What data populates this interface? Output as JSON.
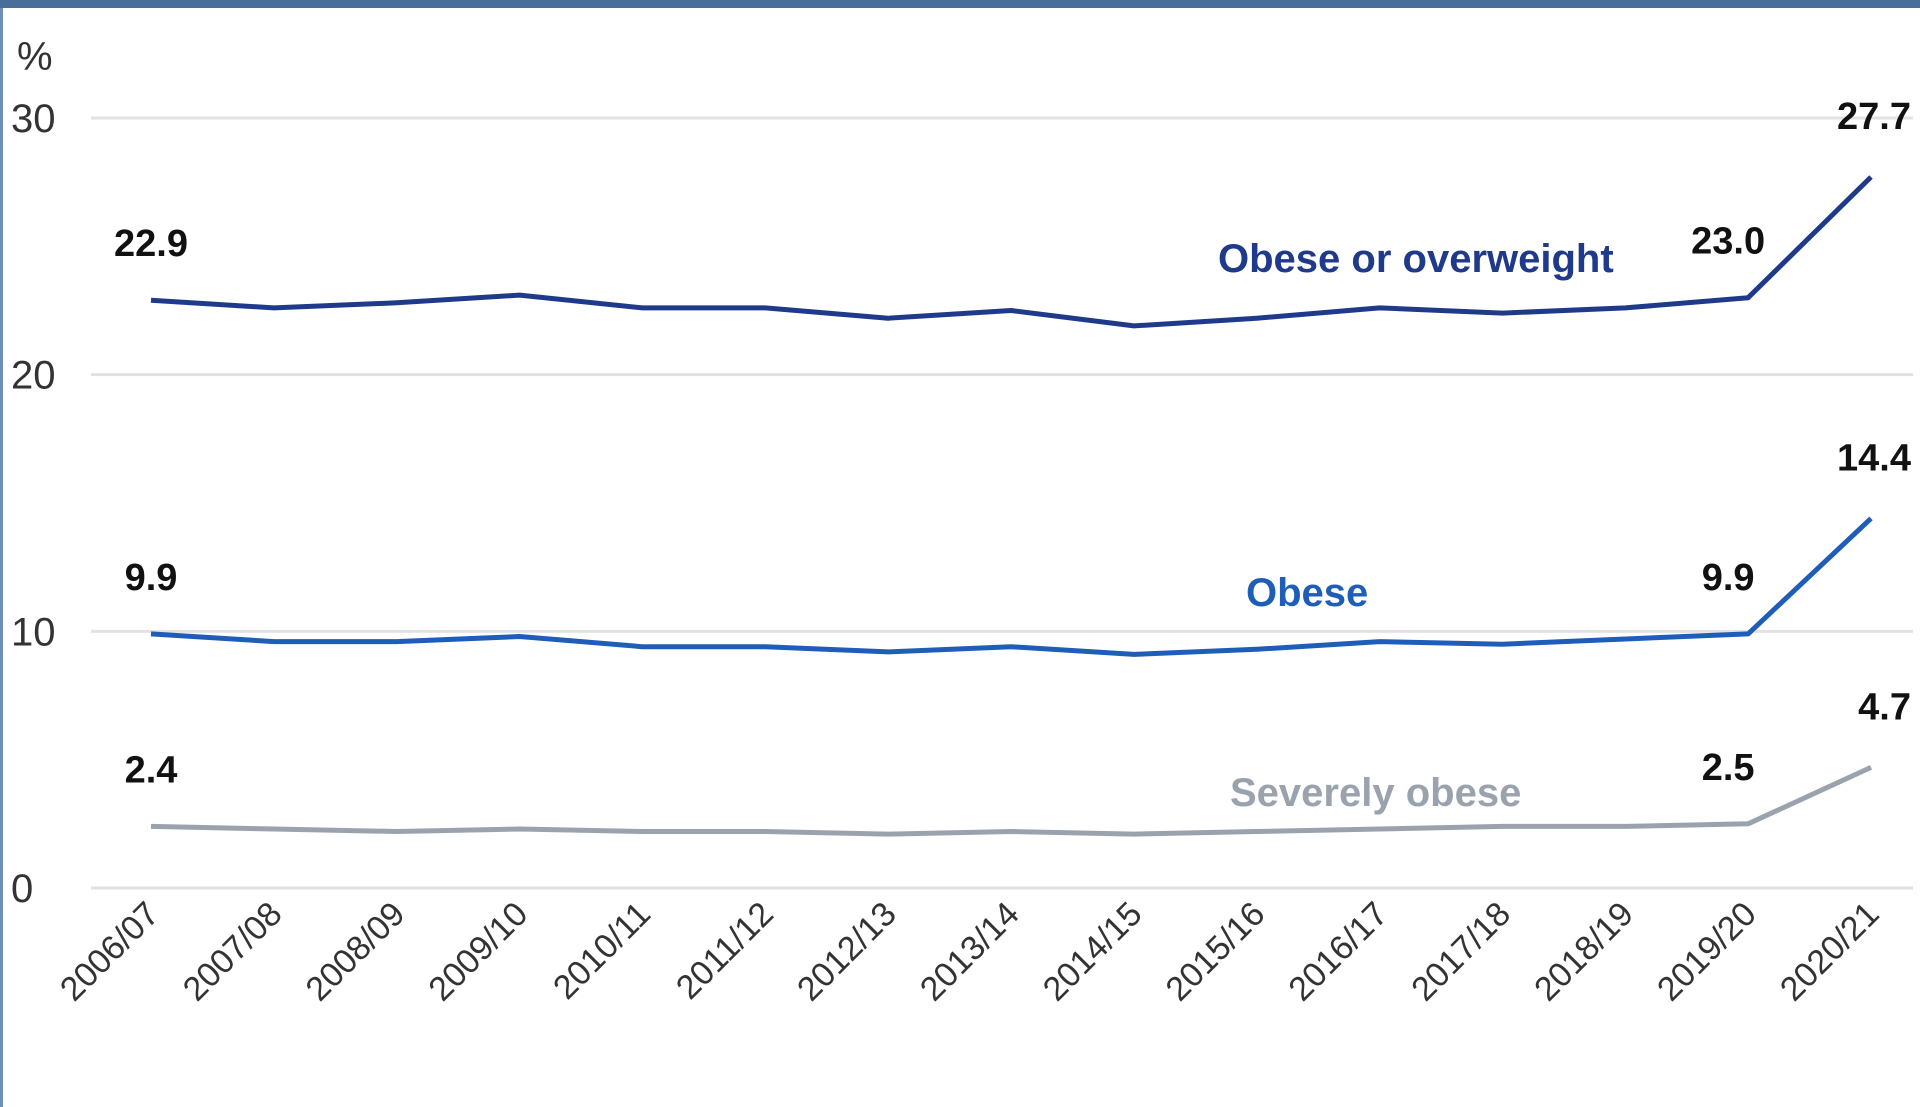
{
  "chart_data": {
    "type": "line",
    "unit_label": "%",
    "categories": [
      "2006/07",
      "2007/08",
      "2008/09",
      "2009/10",
      "2010/11",
      "2011/12",
      "2012/13",
      "2013/14",
      "2014/15",
      "2015/16",
      "2016/17",
      "2017/18",
      "2018/19",
      "2019/20",
      "2020/21"
    ],
    "ylim": [
      0,
      30
    ],
    "yticks": [
      "0",
      "10",
      "20",
      "30"
    ],
    "grid": true,
    "series": [
      {
        "name": "Obese or overweight",
        "color": "#1f3a8a",
        "values": [
          22.9,
          22.6,
          22.8,
          23.1,
          22.6,
          22.6,
          22.2,
          22.5,
          21.9,
          22.2,
          22.6,
          22.4,
          22.6,
          23.0,
          27.7
        ],
        "labels": [
          {
            "index": 0,
            "text": "22.9"
          },
          {
            "index": 13,
            "text": "23.0"
          },
          {
            "index": 14,
            "text": "27.7"
          }
        ]
      },
      {
        "name": "Obese",
        "color": "#1e5eb8",
        "values": [
          9.9,
          9.6,
          9.6,
          9.8,
          9.4,
          9.4,
          9.2,
          9.4,
          9.1,
          9.3,
          9.6,
          9.5,
          9.7,
          9.9,
          14.4
        ],
        "labels": [
          {
            "index": 0,
            "text": "9.9"
          },
          {
            "index": 13,
            "text": "9.9"
          },
          {
            "index": 14,
            "text": "14.4"
          }
        ]
      },
      {
        "name": "Severely obese",
        "color": "#9aa3ad",
        "values": [
          2.4,
          2.3,
          2.2,
          2.3,
          2.2,
          2.2,
          2.1,
          2.2,
          2.1,
          2.2,
          2.3,
          2.4,
          2.4,
          2.5,
          4.7
        ],
        "labels": [
          {
            "index": 0,
            "text": "2.4"
          },
          {
            "index": 13,
            "text": "2.5"
          },
          {
            "index": 14,
            "text": "4.7"
          }
        ]
      }
    ]
  }
}
